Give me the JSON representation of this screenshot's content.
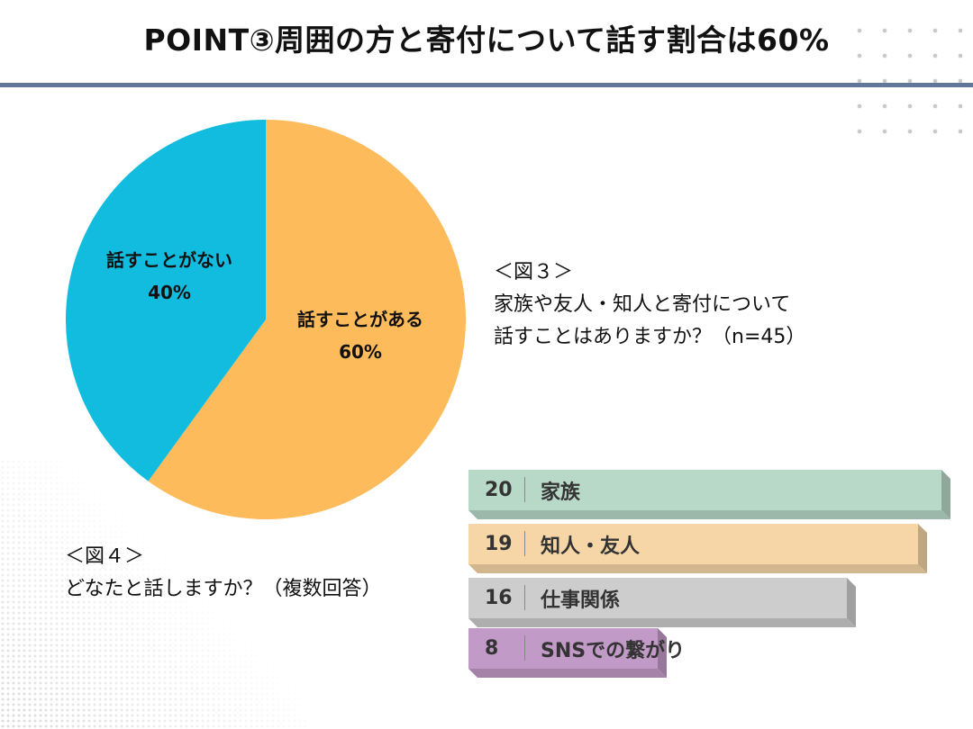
{
  "title": "POINT③周囲の方と寄付について話す割合は60%",
  "figure3": {
    "caption_lines": [
      "＜図３＞",
      "家族や友人・知人と寄付について",
      "話すことはありますか？（n=45）"
    ]
  },
  "figure4": {
    "caption_lines": [
      "＜図４＞",
      "どなたと話しますか？（複数回答）"
    ]
  },
  "colors": {
    "title_rule": "#60779a",
    "pie_yes": "#fdbb5b",
    "pie_no": "#12bcdf",
    "bar_family": "#b8d8c8",
    "bar_friends": "#f6d6a7",
    "bar_work": "#cdcdcd",
    "bar_sns": "#c29ac7"
  },
  "chart_data": [
    {
      "type": "pie",
      "title": "",
      "slices": [
        {
          "label": "話すことがある",
          "value": 60,
          "value_label": "60%",
          "color": "#fdbb5b"
        },
        {
          "label": "話すことがない",
          "value": 40,
          "value_label": "40%",
          "color": "#12bcdf"
        }
      ]
    },
    {
      "type": "bar",
      "orientation": "horizontal",
      "title": "",
      "categories": [
        "家族",
        "知人・友人",
        "仕事関係",
        "SNSでの繋がり"
      ],
      "values": [
        20,
        19,
        16,
        8
      ],
      "value_labels": [
        "20",
        "19",
        "16",
        "8"
      ],
      "colors": [
        "#b8d8c8",
        "#f6d6a7",
        "#cdcdcd",
        "#c29ac7"
      ],
      "xlim": [
        0,
        20
      ]
    }
  ]
}
